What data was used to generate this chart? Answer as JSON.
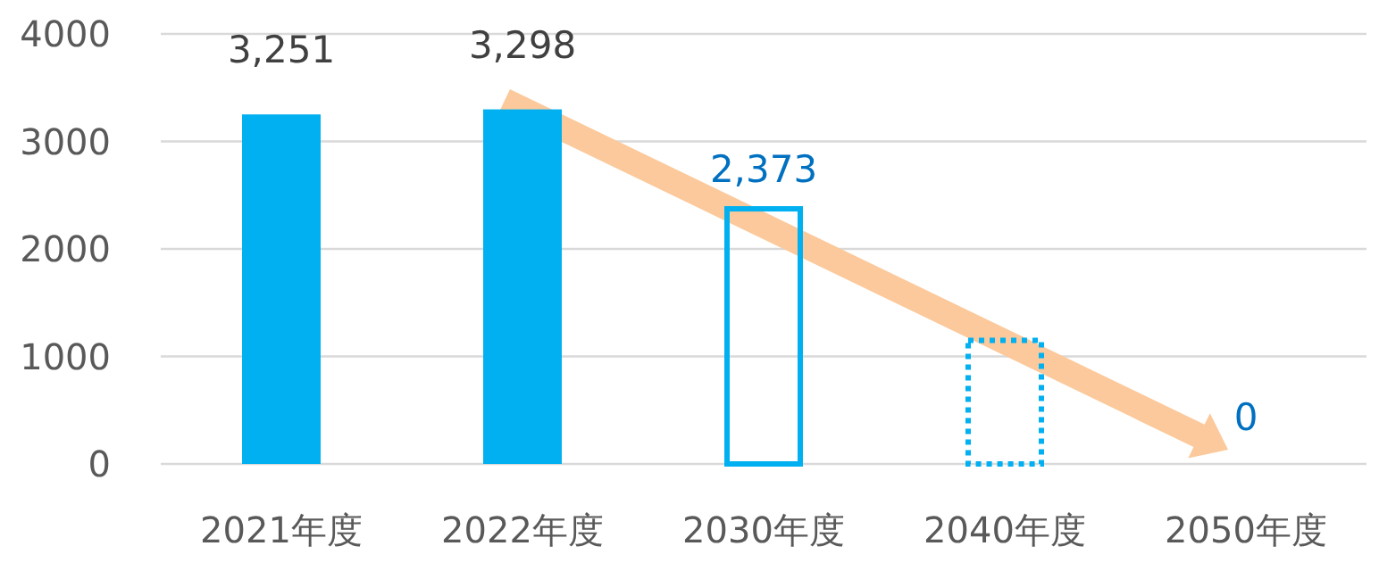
{
  "chart_data": {
    "type": "bar",
    "categories": [
      "2021年度",
      "2022年度",
      "2030年度",
      "2040年度",
      "2050年度"
    ],
    "series": [
      {
        "color": "#00b0f0",
        "values": [
          3251,
          3298,
          null,
          null,
          null
        ],
        "value_labels": [
          "3,251",
          "3,298",
          null,
          null,
          null
        ]
      },
      {
        "color": "#00b0f0",
        "values": [
          null,
          null,
          null,
          null,
          0
        ],
        "value_labels": [
          null,
          null,
          null,
          null,
          "0"
        ]
      },
      {
        "color": "#00b0f0",
        "line_style": "solid",
        "values": [
          null,
          null,
          2373,
          null,
          null
        ],
        "value_labels": [
          null,
          null,
          "2,373",
          null,
          null
        ]
      },
      {
        "color": "#00b0f0",
        "line_style": "dotted",
        "values": [
          null,
          null,
          null,
          1150,
          null
        ],
        "value_labels": [
          null,
          null,
          null,
          null,
          null
        ]
      }
    ],
    "ylim": [
      0,
      4000
    ],
    "yticks": [
      0,
      1000,
      2000,
      3000,
      4000
    ],
    "grid": "y"
  }
}
